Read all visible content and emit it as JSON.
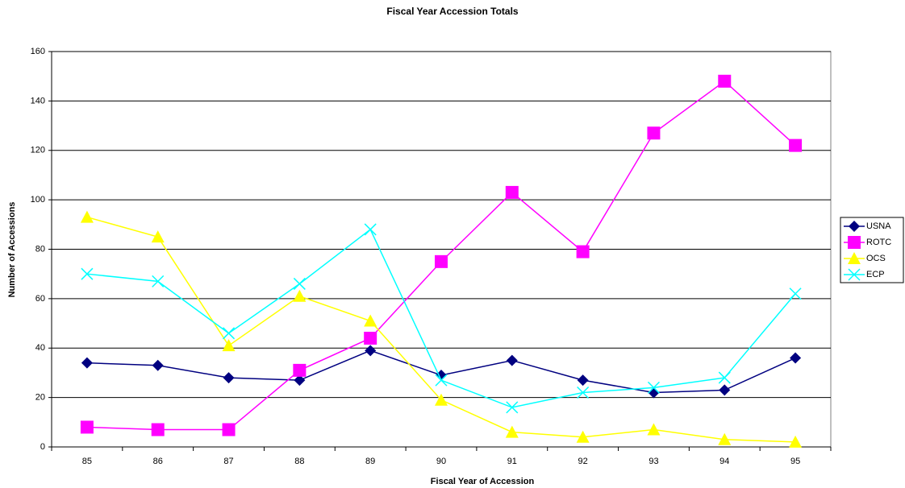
{
  "chart_data": {
    "type": "line",
    "title": "Fiscal Year Accession Totals",
    "x_label": "Fiscal Year of Accession",
    "y_label": "Number of Accessions",
    "categories": [
      "85",
      "86",
      "87",
      "88",
      "89",
      "90",
      "91",
      "92",
      "93",
      "94",
      "95"
    ],
    "series": [
      {
        "name": "USNA",
        "color": "#000080",
        "marker": "diamond",
        "values": [
          34,
          33,
          28,
          27,
          39,
          29,
          35,
          27,
          22,
          23,
          36
        ]
      },
      {
        "name": "ROTC",
        "color": "#ff00ff",
        "marker": "square",
        "values": [
          8,
          7,
          7,
          31,
          44,
          75,
          103,
          79,
          127,
          148,
          122
        ]
      },
      {
        "name": "OCS",
        "color": "#ffff00",
        "marker": "triangle",
        "values": [
          93,
          85,
          41,
          61,
          51,
          19,
          6,
          4,
          7,
          3,
          2
        ]
      },
      {
        "name": "ECP",
        "color": "#00ffff",
        "marker": "x",
        "values": [
          70,
          67,
          46,
          66,
          88,
          27,
          16,
          22,
          24,
          28,
          62
        ]
      }
    ],
    "ylim": [
      0,
      160
    ],
    "yticks": [
      0,
      20,
      40,
      60,
      80,
      100,
      120,
      140,
      160
    ],
    "grid": true,
    "legend": "right"
  }
}
